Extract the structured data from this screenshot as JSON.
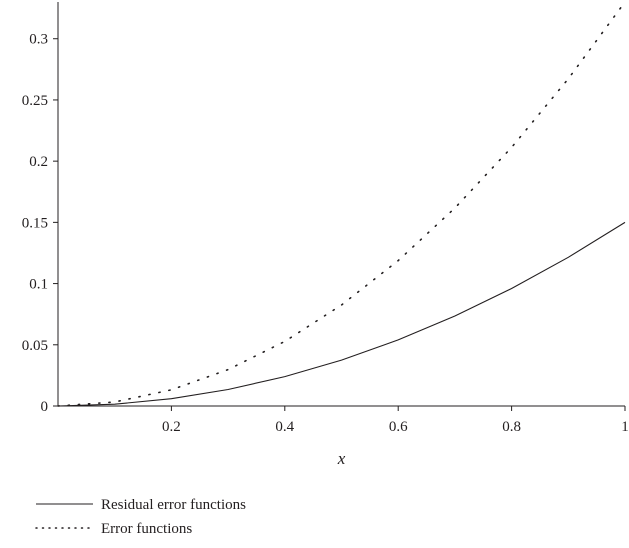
{
  "chart_data": {
    "type": "line",
    "title": "",
    "xlabel": "x",
    "ylabel": "",
    "xlim": [
      0,
      1
    ],
    "ylim": [
      0,
      0.33
    ],
    "grid": false,
    "legend_position": "bottom-left",
    "x_ticks": [
      0.2,
      0.4,
      0.6,
      0.8,
      1
    ],
    "x_tick_labels": [
      "0.2",
      "0.4",
      "0.6",
      "0.8",
      "1"
    ],
    "y_ticks": [
      0,
      0.05,
      0.1,
      0.15,
      0.2,
      0.25,
      0.3
    ],
    "y_tick_labels": [
      "0",
      "0.05",
      "0.1",
      "0.15",
      "0.2",
      "0.25",
      "0.3"
    ],
    "x": [
      0,
      0.1,
      0.2,
      0.3,
      0.4,
      0.5,
      0.6,
      0.7,
      0.8,
      0.9,
      1.0
    ],
    "series": [
      {
        "name": "Residual error functions",
        "style": "solid",
        "color": "#231f20",
        "values": [
          0,
          0.0015,
          0.006,
          0.0135,
          0.024,
          0.0375,
          0.054,
          0.0735,
          0.096,
          0.1215,
          0.15
        ]
      },
      {
        "name": "Error functions",
        "style": "dotted",
        "color": "#231f20",
        "values": [
          0,
          0.0033,
          0.0132,
          0.0297,
          0.0528,
          0.0825,
          0.1188,
          0.1617,
          0.2112,
          0.2673,
          0.33
        ]
      }
    ]
  }
}
